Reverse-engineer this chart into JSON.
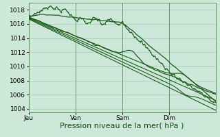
{
  "background_color": "#cde8d8",
  "plot_bg_color": "#cde8d8",
  "grid_color": "#a8c8b4",
  "line_color": "#1a5c1a",
  "ylim": [
    1003.5,
    1019.0
  ],
  "yticks": [
    1004,
    1006,
    1008,
    1010,
    1012,
    1014,
    1016,
    1018
  ],
  "xlabel": "Pression niveau de la mer( hPa )",
  "xlabel_fontsize": 8,
  "tick_fontsize": 6.5,
  "day_labels": [
    "Jeu",
    "Ven",
    "Sam",
    "Dim"
  ],
  "day_positions": [
    0,
    64,
    128,
    192
  ],
  "total_points": 256
}
